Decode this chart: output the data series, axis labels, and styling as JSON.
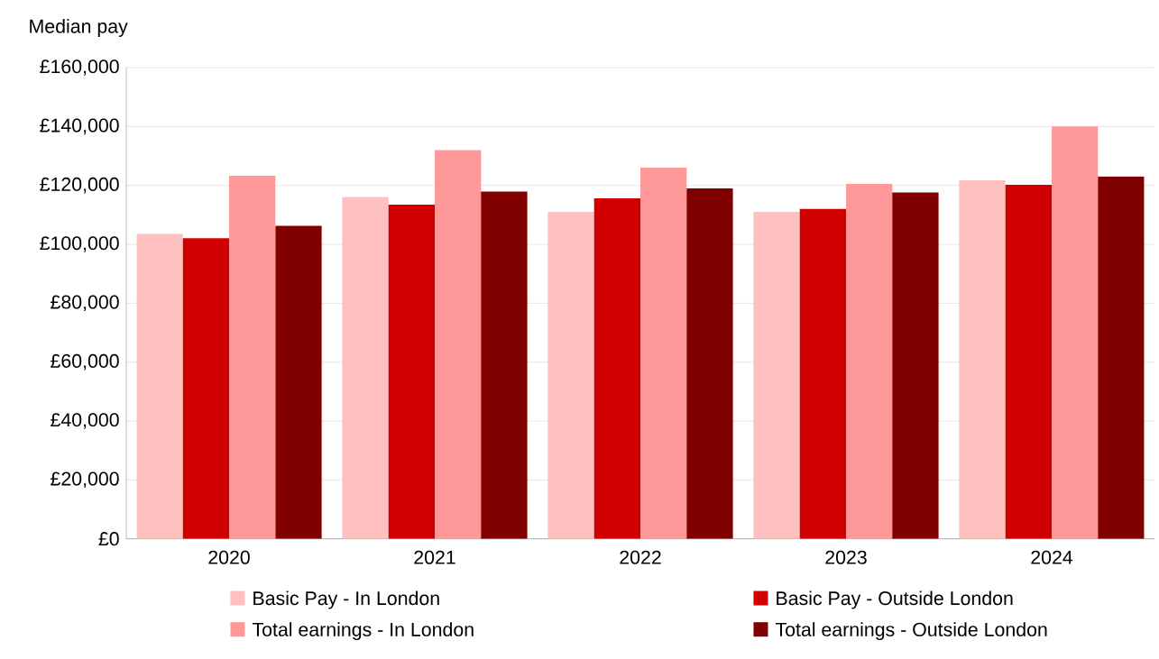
{
  "chart_data": {
    "type": "bar",
    "ylabel": "Median pay",
    "categories": [
      "2020",
      "2021",
      "2022",
      "2023",
      "2024"
    ],
    "series": [
      {
        "name": "Basic Pay - In London",
        "color": "#ffc0c0",
        "values": [
          103500,
          116100,
          111000,
          111000,
          121700
        ]
      },
      {
        "name": "Basic Pay - Outside London",
        "color": "#d00000",
        "values": [
          102100,
          113500,
          115600,
          112000,
          120200
        ]
      },
      {
        "name": "Total earnings - In London",
        "color": "#ff9999",
        "values": [
          123300,
          132000,
          126000,
          120500,
          140000
        ]
      },
      {
        "name": "Total earnings - Outside London",
        "color": "#800000",
        "values": [
          106300,
          117900,
          119000,
          117600,
          123000
        ]
      }
    ],
    "ylim": [
      0,
      160000
    ],
    "yticks": [
      {
        "value": 0,
        "label": "£0"
      },
      {
        "value": 20000,
        "label": "£20,000"
      },
      {
        "value": 40000,
        "label": "£40,000"
      },
      {
        "value": 60000,
        "label": "£60,000"
      },
      {
        "value": 80000,
        "label": "£80,000"
      },
      {
        "value": 100000,
        "label": "£100,000"
      },
      {
        "value": 120000,
        "label": "£120,000"
      },
      {
        "value": 140000,
        "label": "£140,000"
      },
      {
        "value": 160000,
        "label": "£160,000"
      }
    ],
    "grid": "y",
    "legend": "bottom"
  }
}
